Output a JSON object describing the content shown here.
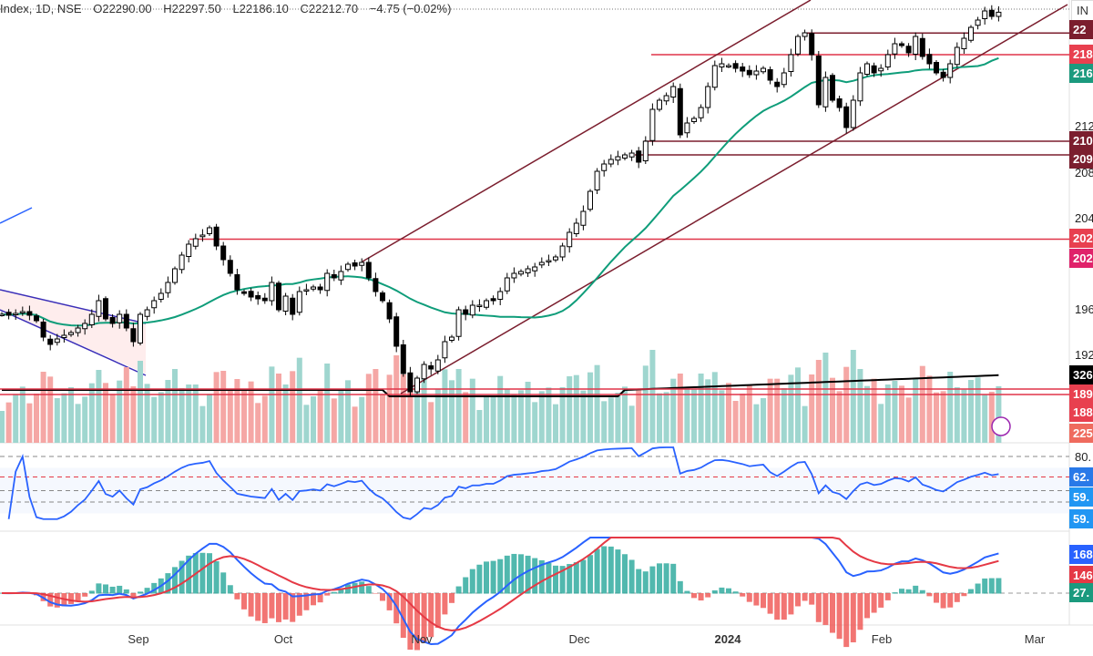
{
  "header": {
    "symbol": "Index, 1D, NSE",
    "open": "O22290.00",
    "high": "H22297.50",
    "low": "L22186.10",
    "close": "C22212.70",
    "change": "−4.75 (−0.02%)"
  },
  "colors": {
    "up": "#26a69a",
    "down": "#ef5350",
    "ma": "#0f9d7a",
    "rsi": "#2962ff",
    "macd": "#2962ff",
    "signal": "#e53945",
    "level": "#e03448",
    "channel": "#7b1e2e"
  },
  "axis": {
    "top_button": "IN",
    "price_ticks": [
      "212",
      "208",
      "204",
      "196",
      "192"
    ],
    "tags": [
      {
        "text": "22",
        "color": "#7b1e2e"
      },
      {
        "text": "218",
        "color": "#e8404f"
      },
      {
        "text": "216",
        "color": "#1b9a7e"
      },
      {
        "text": "210",
        "color": "#7b1e2e"
      },
      {
        "text": "209",
        "color": "#7b1e2e"
      },
      {
        "text": "202",
        "color": "#e8404f"
      },
      {
        "text": "202",
        "color": "#e0226a"
      },
      {
        "text": "326",
        "color": "#000000"
      },
      {
        "text": "189",
        "color": "#e8404f"
      },
      {
        "text": "188",
        "color": "#e8404f"
      },
      {
        "text": "225",
        "color": "#ef6b5e"
      },
      {
        "text": "62.",
        "color": "#2979e8"
      },
      {
        "text": "59.",
        "color": "#2196f3"
      },
      {
        "text": "59.",
        "color": "#2196f3"
      },
      {
        "text": "168",
        "color": "#2962ff"
      },
      {
        "text": "146",
        "color": "#e53945"
      },
      {
        "text": "27.",
        "color": "#1b9a7e"
      }
    ],
    "rsi_tick": "80.",
    "x_labels": [
      "Sep",
      "Oct",
      "Nov",
      "Dec",
      "2024",
      "Feb",
      "Mar"
    ]
  },
  "chart_data": {
    "type": "candlestick",
    "title": "Index, 1D, NSE",
    "ylim": [
      18600,
      22320
    ],
    "x_labels": [
      "Sep",
      "Oct",
      "Nov",
      "Dec",
      "2024",
      "Feb",
      "Mar"
    ],
    "last": {
      "open": 22290.0,
      "high": 22297.5,
      "low": 22186.1,
      "close": 22212.7,
      "change": -4.75,
      "change_pct": -0.02
    },
    "closes": [
      19560,
      19552,
      19568,
      19584,
      19552,
      19504,
      19360,
      19296,
      19344,
      19376,
      19400,
      19440,
      19480,
      19560,
      19680,
      19520,
      19480,
      19560,
      19440,
      19320,
      19560,
      19600,
      19680,
      19744,
      19840,
      19960,
      20080,
      20176,
      20224,
      20256,
      20320,
      20160,
      20040,
      19920,
      19776,
      19744,
      19712,
      19696,
      19680,
      19840,
      19600,
      19720,
      19560,
      19760,
      19776,
      19800,
      19776,
      19920,
      19880,
      19936,
      20000,
      19984,
      20016,
      19880,
      19760,
      19680,
      19520,
      19280,
      19040,
      18880,
      19000,
      19120,
      19080,
      19160,
      19320,
      19360,
      19600,
      19560,
      19640,
      19640,
      19680,
      19680,
      19760,
      19880,
      19920,
      19936,
      19960,
      19976,
      20016,
      20032,
      20064,
      20160,
      20280,
      20360,
      20464,
      20640,
      20816,
      20880,
      20920,
      20944,
      20960,
      20976,
      20896,
      21080,
      21360,
      21440,
      21480,
      21560,
      21136,
      21240,
      21280,
      21376,
      21560,
      21744,
      21760,
      21744,
      21720,
      21696,
      21664,
      21696,
      21720,
      21616,
      21560,
      21680,
      21840,
      22000,
      22032,
      21840,
      21400,
      21640,
      21440,
      21376,
      21200,
      21440,
      21680,
      21760,
      21680,
      21720,
      21840,
      21936,
      21920,
      21856,
      22000,
      21824,
      21760,
      21680,
      21640,
      21760,
      21904,
      21984,
      22080,
      22144,
      22224,
      22176,
      22212.7
    ],
    "horizontal_levels": [
      22030,
      21840,
      21080,
      20960,
      20220
    ]
  }
}
